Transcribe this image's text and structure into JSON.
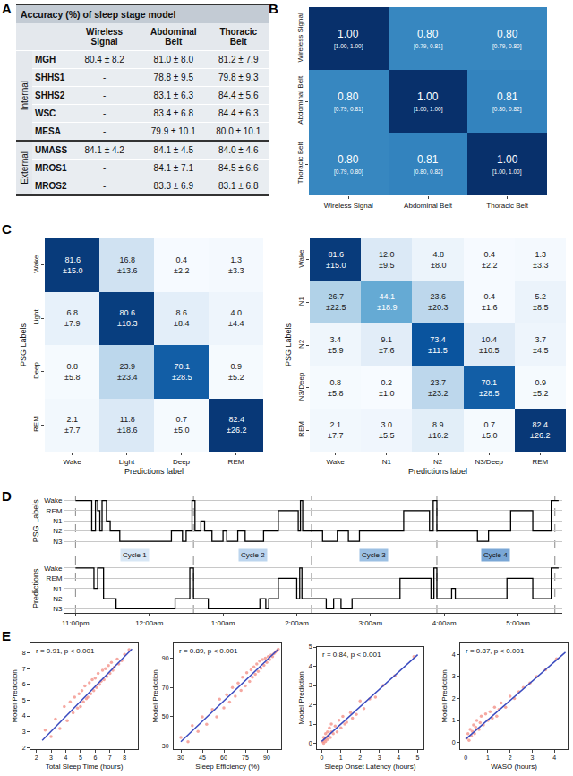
{
  "chart_data": [
    {
      "type": "table",
      "panel": "A",
      "title": "Accuracy (%) of sleep stage model",
      "columns": [
        "Wireless Signal",
        "Abdominal Belt",
        "Thoracic Belt"
      ],
      "groups": [
        {
          "name": "Internal",
          "rows": [
            [
              "MGH",
              "80.4 ± 8.2",
              "81.0 ± 8.0",
              "81.2 ± 7.9"
            ],
            [
              "SHHS1",
              "-",
              "78.8 ± 9.5",
              "79.8 ± 9.3"
            ],
            [
              "SHHS2",
              "-",
              "83.1 ± 6.3",
              "84.4 ± 5.6"
            ],
            [
              "WSC",
              "-",
              "83.4 ± 6.8",
              "84.4 ± 6.3"
            ],
            [
              "MESA",
              "-",
              "79.9 ± 10.1",
              "80.0 ± 10.1"
            ]
          ]
        },
        {
          "name": "External",
          "rows": [
            [
              "UMASS",
              "84.1 ± 4.2",
              "84.1 ± 4.5",
              "84.0 ± 4.6"
            ],
            [
              "MROS1",
              "-",
              "84.1 ± 7.1",
              "84.5 ± 6.6"
            ],
            [
              "MROS2",
              "-",
              "83.3 ± 6.9",
              "83.1 ± 6.8"
            ]
          ]
        }
      ]
    },
    {
      "type": "heatmap",
      "panel": "B",
      "color": "Blues",
      "zlim": [
        0.4,
        1.0
      ],
      "categories": [
        "Wireless Signal",
        "Abdominal Belt",
        "Thoracic Belt"
      ],
      "z": [
        [
          1.0,
          0.8,
          0.8
        ],
        [
          0.8,
          1.0,
          0.81
        ],
        [
          0.8,
          0.81,
          1.0
        ]
      ],
      "value_labels": [
        [
          "1.00",
          "0.80",
          "0.80"
        ],
        [
          "0.80",
          "1.00",
          "0.81"
        ],
        [
          "0.80",
          "0.81",
          "1.00"
        ]
      ],
      "ci_labels": [
        [
          "[1.00, 1.00]",
          "[0.79, 0.81]",
          "[0.79, 0.80]"
        ],
        [
          "[0.79, 0.81]",
          "[1.00, 1.00]",
          "[0.80, 0.82]"
        ],
        [
          "[0.79, 0.80]",
          "[0.80, 0.82]",
          "[1.00, 1.00]"
        ]
      ]
    },
    {
      "type": "heatmap",
      "panel": "C",
      "color": "Blues",
      "zlim": [
        0,
        85
      ],
      "x_label": "Predictions label",
      "y_label": "PSG Labels",
      "categories": [
        "Wake",
        "Light",
        "Deep",
        "REM"
      ],
      "z": [
        [
          81.6,
          16.8,
          0.4,
          1.3
        ],
        [
          6.8,
          80.6,
          8.6,
          4.0
        ],
        [
          0.8,
          23.9,
          70.1,
          0.9
        ],
        [
          2.1,
          11.8,
          0.7,
          82.4
        ]
      ],
      "value_labels": [
        [
          "81.6\n±15.0",
          "16.8\n±13.6",
          "0.4\n±2.2",
          "1.3\n±3.3"
        ],
        [
          "6.8\n±7.9",
          "80.6\n±10.3",
          "8.6\n±8.4",
          "4.0\n±4.4"
        ],
        [
          "0.8\n±5.8",
          "23.9\n±23.4",
          "70.1\n±28.5",
          "0.9\n±5.2"
        ],
        [
          "2.1\n±7.7",
          "11.8\n±18.6",
          "0.7\n±5.0",
          "82.4\n±26.2"
        ]
      ]
    },
    {
      "type": "heatmap",
      "color": "Blues",
      "zlim": [
        0,
        85
      ],
      "x_label": "Predictions label",
      "y_label": "PSG Labels",
      "categories": [
        "Wake",
        "N1",
        "N2",
        "N3/Deep",
        "REM"
      ],
      "z": [
        [
          81.6,
          12.0,
          4.8,
          0.4,
          1.3
        ],
        [
          26.7,
          44.1,
          23.6,
          0.4,
          5.2
        ],
        [
          3.4,
          9.1,
          73.4,
          10.4,
          3.7
        ],
        [
          0.8,
          0.2,
          23.7,
          70.1,
          0.9
        ],
        [
          2.1,
          3.0,
          8.9,
          0.7,
          82.4
        ]
      ],
      "value_labels": [
        [
          "81.6\n±15.0",
          "12.0\n±9.5",
          "4.8\n±8.0",
          "0.4\n±2.2",
          "1.3\n±3.3"
        ],
        [
          "26.7\n±22.5",
          "44.1\n±18.9",
          "23.6\n±20.3",
          "0.4\n±1.6",
          "5.2\n±8.5"
        ],
        [
          "3.4\n±5.9",
          "9.1\n±7.6",
          "73.4\n±11.5",
          "10.4\n±10.5",
          "3.7\n±4.5"
        ],
        [
          "0.8\n±5.8",
          "0.2\n±1.0",
          "23.7\n±23.2",
          "70.1\n±28.5",
          "0.9\n±5.2"
        ],
        [
          "2.1\n±7.7",
          "3.0\n±5.5",
          "8.9\n±16.2",
          "0.7\n±5.0",
          "82.4\n±26.2"
        ]
      ]
    },
    {
      "type": "line",
      "panel": "D",
      "line_style": "step",
      "grid": true,
      "stages": [
        "Wake",
        "REM",
        "N1",
        "N2",
        "N3"
      ],
      "xlim": [
        22.85,
        29.6
      ],
      "xticks": [
        {
          "value": 23,
          "label": "11:00pm"
        },
        {
          "value": 24,
          "label": "12:00am"
        },
        {
          "value": 25,
          "label": "1:00am"
        },
        {
          "value": 26,
          "label": "2:00am"
        },
        {
          "value": 27,
          "label": "3:00am"
        },
        {
          "value": 28,
          "label": "4:00am"
        },
        {
          "value": 29,
          "label": "5:00am"
        }
      ],
      "cycles": [
        {
          "label": "Cycle 1",
          "start": 23.0,
          "end": 24.6
        },
        {
          "label": "Cycle 2",
          "start": 24.6,
          "end": 26.2
        },
        {
          "label": "Cycle 3",
          "start": 26.2,
          "end": 27.9
        },
        {
          "label": "Cycle 4",
          "start": 27.9,
          "end": 29.5
        }
      ],
      "series": [
        {
          "name": "PSG Labels",
          "color": "#000000",
          "x": [
            23.0,
            23.22,
            23.27,
            23.3,
            23.33,
            23.36,
            23.42,
            23.47,
            23.6,
            24.3,
            24.45,
            24.5,
            24.58,
            24.62,
            24.7,
            24.75,
            24.85,
            25.0,
            25.05,
            25.2,
            25.3,
            25.55,
            25.75,
            26.02,
            26.05,
            26.08,
            26.35,
            26.55,
            26.7,
            26.85,
            27.45,
            27.8,
            27.85,
            27.9,
            28.45,
            28.6,
            28.9,
            29.2,
            29.45,
            29.55
          ],
          "values": [
            "Wake",
            "N2",
            "Wake",
            "REM",
            "N2",
            "Wake",
            "N1",
            "N2",
            "N3",
            "N2",
            "N3",
            "N2",
            "Wake",
            "N2",
            "N1",
            "N2",
            "N3",
            "N2",
            "N3",
            "N2",
            "N3",
            "N2",
            "REM",
            "N2",
            "Wake",
            "N2",
            "N3",
            "N2",
            "N3",
            "N2",
            "REM",
            "N2",
            "Wake",
            "N2",
            "N3",
            "N2",
            "REM",
            "N2",
            "Wake",
            "Wake"
          ]
        },
        {
          "name": "Predictions",
          "color": "#000000",
          "x": [
            23.0,
            23.25,
            23.3,
            23.38,
            23.55,
            24.35,
            24.55,
            24.6,
            24.8,
            25.5,
            25.58,
            25.62,
            25.75,
            26.0,
            26.04,
            26.07,
            26.4,
            26.5,
            26.6,
            26.75,
            27.4,
            27.82,
            27.86,
            27.9,
            28.1,
            28.15,
            28.85,
            29.2,
            29.45,
            29.55
          ],
          "values": [
            "Wake",
            "N1",
            "Wake",
            "N2",
            "N3",
            "N2",
            "Wake",
            "N2",
            "N3",
            "N2",
            "N3",
            "N2",
            "REM",
            "N2",
            "Wake",
            "N2",
            "N3",
            "N2",
            "N3",
            "N2",
            "REM",
            "N2",
            "Wake",
            "N2",
            "N1",
            "N2",
            "REM",
            "N2",
            "Wake",
            "Wake"
          ]
        }
      ]
    },
    {
      "type": "scatter",
      "panel": "E",
      "x_label": "Total Sleep Time (hours)",
      "y_label": "Model Prediction",
      "annotation": "r = 0.91, p < 0.001",
      "color": "#f28b82",
      "xlim": [
        1.6,
        8.9
      ],
      "xticks": [
        2,
        3,
        4,
        5,
        6,
        7,
        8
      ],
      "ylim": [
        1.9,
        8.6
      ],
      "yticks": [
        2,
        3,
        4,
        5,
        6,
        7,
        8
      ],
      "x": [
        2.6,
        3.0,
        3.3,
        3.6,
        3.9,
        4.1,
        4.3,
        4.5,
        4.6,
        4.8,
        4.9,
        5.0,
        5.1,
        5.2,
        5.3,
        5.4,
        5.5,
        5.6,
        5.7,
        5.8,
        5.9,
        6.0,
        6.1,
        6.2,
        6.3,
        6.4,
        6.5,
        6.6,
        6.7,
        6.8,
        6.9,
        7.0,
        7.1,
        7.2,
        7.3,
        7.5,
        7.6,
        7.8,
        8.0,
        8.3
      ],
      "values": [
        3.1,
        2.7,
        3.8,
        3.2,
        4.6,
        3.7,
        4.9,
        4.2,
        5.2,
        4.5,
        5.4,
        4.6,
        5.6,
        4.9,
        5.9,
        5.1,
        5.2,
        6.1,
        5.4,
        6.3,
        5.6,
        6.4,
        5.8,
        6.7,
        6.0,
        6.2,
        6.9,
        6.3,
        7.0,
        6.5,
        7.2,
        6.7,
        7.4,
        6.9,
        7.1,
        7.6,
        7.3,
        7.5,
        7.9,
        8.2
      ],
      "fit": {
        "color": "#3b4cc0",
        "x": [
          2.4,
          8.5
        ],
        "values": [
          2.45,
          8.25
        ]
      }
    },
    {
      "type": "scatter",
      "x_label": "Sleep Efficiency (%)",
      "y_label": "Model Prediction",
      "annotation": "r = 0.89, p < 0.001",
      "color": "#f28b82",
      "xlim": [
        25,
        100
      ],
      "xticks": [
        30,
        45,
        60,
        75,
        90
      ],
      "ylim": [
        28,
        100
      ],
      "yticks": [
        30,
        50,
        70,
        90
      ],
      "x": [
        30,
        35,
        38,
        42,
        45,
        48,
        52,
        55,
        57,
        60,
        62,
        64,
        66,
        68,
        70,
        72,
        73,
        75,
        76,
        78,
        79,
        80,
        81,
        82,
        83,
        84,
        85,
        86,
        87,
        88,
        89,
        90,
        91,
        92,
        93,
        94,
        95,
        96,
        97,
        98
      ],
      "values": [
        36,
        33,
        44,
        40,
        50,
        45,
        55,
        50,
        62,
        56,
        65,
        60,
        70,
        64,
        73,
        68,
        77,
        71,
        80,
        74,
        82,
        77,
        84,
        79,
        86,
        81,
        88,
        83,
        89,
        85,
        90,
        87,
        91,
        89,
        92,
        91,
        93,
        94,
        95,
        96
      ],
      "fit": {
        "color": "#3b4cc0",
        "x": [
          30,
          98
        ],
        "values": [
          33,
          96
        ]
      }
    },
    {
      "type": "scatter",
      "x_label": "Sleep Onset Latency (hours)",
      "y_label": "Model Prediction",
      "annotation": "r = 0.84, p < 0.001",
      "color": "#f28b82",
      "xlim": [
        -0.25,
        5.3
      ],
      "xticks": [
        0,
        1,
        2,
        3,
        4,
        5
      ],
      "ylim": [
        -0.3,
        5.0
      ],
      "yticks": [
        0,
        1,
        2,
        3,
        4,
        5
      ],
      "x": [
        0.05,
        0.1,
        0.1,
        0.15,
        0.2,
        0.2,
        0.25,
        0.3,
        0.3,
        0.35,
        0.4,
        0.45,
        0.5,
        0.5,
        0.6,
        0.7,
        0.8,
        0.9,
        1.0,
        1.1,
        1.2,
        1.3,
        1.5,
        1.6,
        1.8,
        2.0,
        2.2,
        2.5,
        2.8,
        3.2,
        3.8,
        4.8
      ],
      "values": [
        0.1,
        0.3,
        0.0,
        0.2,
        0.5,
        0.1,
        0.3,
        0.6,
        0.2,
        0.4,
        0.8,
        0.3,
        0.6,
        1.0,
        0.5,
        0.9,
        0.6,
        1.2,
        0.8,
        1.4,
        1.0,
        1.1,
        1.6,
        1.3,
        1.5,
        2.2,
        1.8,
        2.3,
        2.4,
        3.0,
        3.5,
        4.5
      ],
      "fit": {
        "color": "#3b4cc0",
        "x": [
          0,
          5
        ],
        "values": [
          0.1,
          4.6
        ]
      }
    },
    {
      "type": "scatter",
      "x_label": "WASO (hours)",
      "y_label": "Model Prediction",
      "annotation": "r = 0.87, p < 0.001",
      "color": "#f28b82",
      "xlim": [
        -0.25,
        4.6
      ],
      "xticks": [
        0,
        1,
        2,
        3,
        4
      ],
      "ylim": [
        -0.3,
        4.5
      ],
      "yticks": [
        0,
        1,
        2,
        3,
        4
      ],
      "x": [
        0.05,
        0.1,
        0.15,
        0.2,
        0.25,
        0.3,
        0.35,
        0.4,
        0.45,
        0.5,
        0.6,
        0.65,
        0.7,
        0.8,
        0.9,
        1.0,
        1.1,
        1.2,
        1.3,
        1.4,
        1.5,
        1.6,
        1.8,
        2.0,
        2.2,
        2.4,
        2.6,
        2.9,
        3.2,
        3.6,
        4.1
      ],
      "values": [
        0.2,
        0.4,
        0.1,
        0.6,
        0.3,
        0.5,
        0.8,
        0.4,
        0.7,
        1.0,
        0.6,
        0.9,
        1.2,
        0.8,
        1.3,
        1.0,
        1.4,
        1.1,
        1.6,
        1.2,
        1.5,
        1.8,
        1.6,
        2.1,
        2.0,
        2.3,
        2.5,
        2.7,
        3.0,
        3.3,
        3.8
      ],
      "fit": {
        "color": "#3b4cc0",
        "x": [
          0,
          4.5
        ],
        "values": [
          0.15,
          4.1
        ]
      }
    }
  ]
}
